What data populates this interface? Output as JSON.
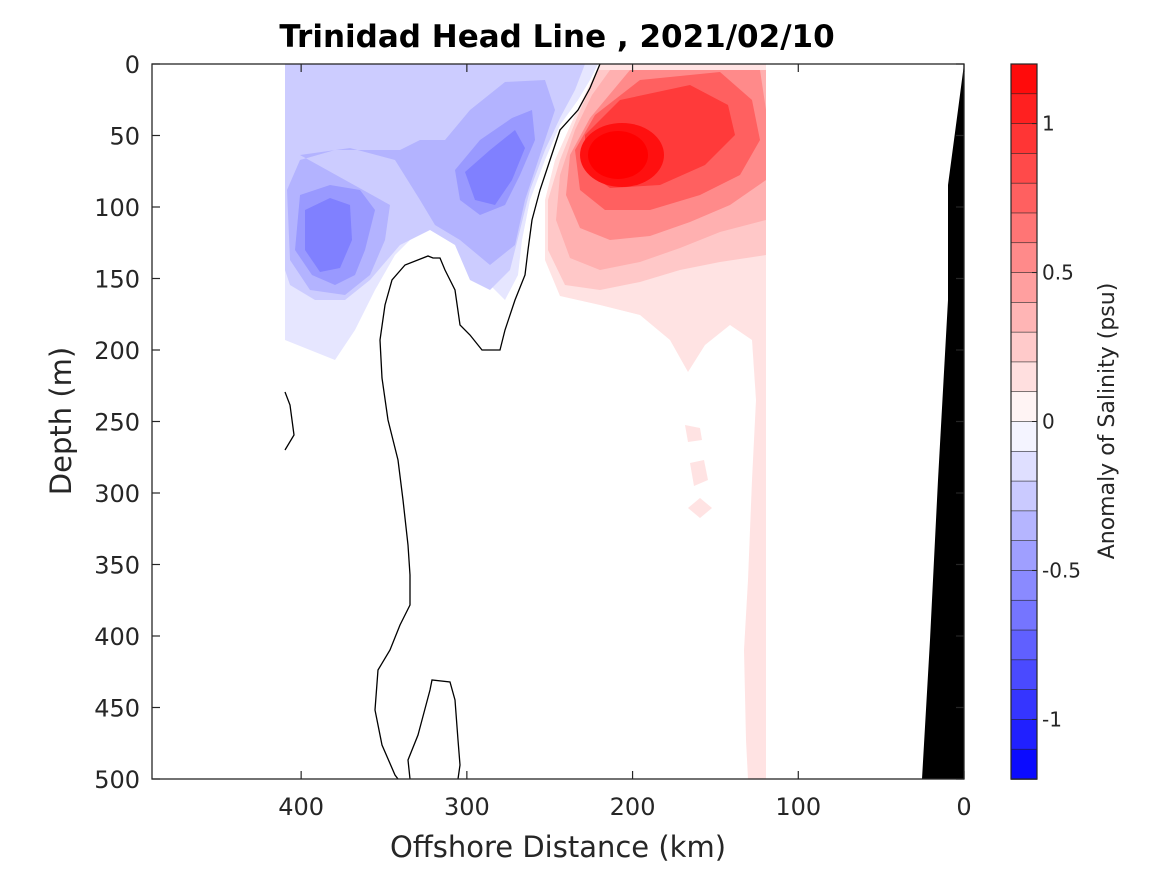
{
  "chart_data": {
    "type": "contour",
    "title": "Trinidad Head Line , 2021/02/10",
    "xlabel": "Offshore Distance (km)",
    "ylabel": "Depth (m)",
    "x_reversed": true,
    "y_reversed": true,
    "xlim": [
      490,
      0
    ],
    "ylim": [
      0,
      500
    ],
    "x_ticks": [
      400,
      300,
      200,
      100,
      0
    ],
    "x_tick_labels": [
      "400",
      "300",
      "200",
      "100",
      "0"
    ],
    "y_ticks": [
      0,
      50,
      100,
      150,
      200,
      250,
      300,
      350,
      400,
      450,
      500
    ],
    "y_tick_labels": [
      "0",
      "50",
      "100",
      "150",
      "200",
      "250",
      "300",
      "350",
      "400",
      "450",
      "500"
    ],
    "data_extent_km": [
      120,
      410
    ],
    "colorbar": {
      "label": "Anomaly of Salinity (psu)",
      "range": [
        -1.2,
        1.2
      ],
      "ticks": [
        1,
        0.5,
        0,
        -0.5,
        -1
      ],
      "tick_labels": [
        "1",
        "0.5",
        "0",
        "-0.5",
        "-1"
      ],
      "levels": [
        1.2,
        1.1,
        1.0,
        0.9,
        0.8,
        0.7,
        0.6,
        0.5,
        0.4,
        0.3,
        0.2,
        0.1,
        0.0,
        -0.1,
        -0.2,
        -0.3,
        -0.4,
        -0.5,
        -0.6,
        -0.7,
        -0.8,
        -0.9,
        -1.0,
        -1.1,
        -1.2
      ]
    },
    "features": {
      "positive_core": {
        "x_km": 205,
        "depth_m": 65,
        "max_anomaly": 1.2
      },
      "negative_cores": [
        {
          "x_km": 385,
          "depth_m": 115,
          "min_anomaly": -0.6
        },
        {
          "x_km": 285,
          "depth_m": 75,
          "min_anomaly": -0.5
        }
      ],
      "zero_contour_near_surface_km": 235,
      "bathymetry_km_at_500m": 25
    },
    "colors": {
      "positive": "#ff0000",
      "negative": "#0000ff",
      "bottom": "#000000",
      "contour_line": "#000000"
    }
  }
}
